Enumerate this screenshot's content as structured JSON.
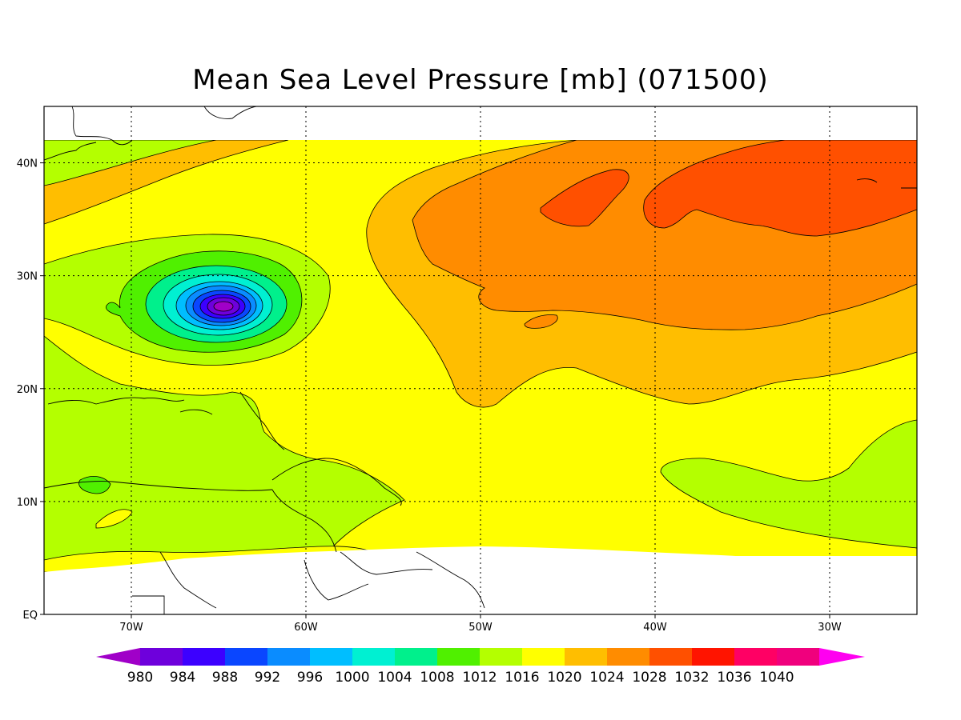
{
  "title": "Mean Sea Level Pressure [mb] (071500)",
  "chart_data": {
    "type": "contour-map",
    "variable": "Mean Sea Level Pressure",
    "units": "mb",
    "timestamp": "071500",
    "lon_range": [
      -75,
      -25
    ],
    "lat_range": [
      0,
      45
    ],
    "lon_ticks": [
      "70W",
      "60W",
      "50W",
      "40W",
      "30W"
    ],
    "lat_ticks": [
      "EQ",
      "10N",
      "20N",
      "30N",
      "40N"
    ],
    "grid": "dotted",
    "low_center": {
      "lon": -65,
      "lat": 27,
      "min_pressure": 980
    },
    "highs": [
      {
        "lon": -33,
        "lat": 38,
        "pressure": 1028
      }
    ],
    "colorbar": {
      "levels": [
        "980",
        "984",
        "988",
        "992",
        "996",
        "1000",
        "1004",
        "1008",
        "1012",
        "1016",
        "1020",
        "1024",
        "1028",
        "1032",
        "1036",
        "1040"
      ],
      "colors": [
        "#a000c8",
        "#6e00dc",
        "#3c00ff",
        "#0a46ff",
        "#0a8cff",
        "#00beff",
        "#00f0d2",
        "#00f08c",
        "#50f000",
        "#b4ff00",
        "#ffff00",
        "#ffbe00",
        "#ff8c00",
        "#ff5000",
        "#ff1400",
        "#ff0064",
        "#f0007d",
        "#ff00f0"
      ]
    }
  }
}
